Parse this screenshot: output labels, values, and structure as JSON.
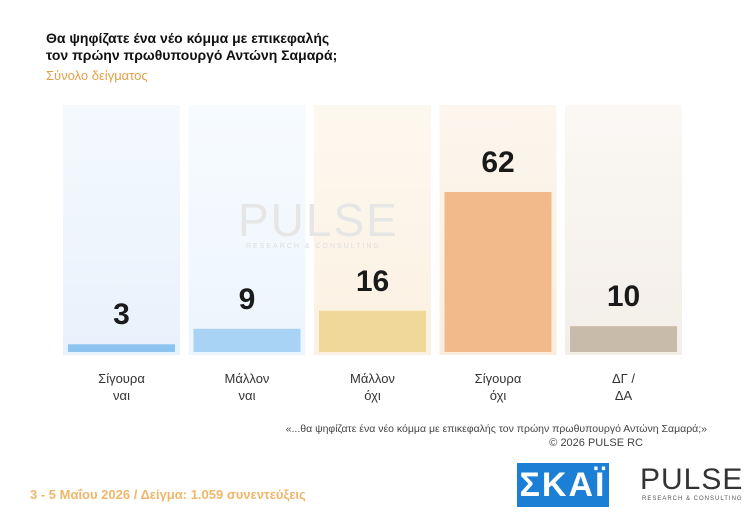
{
  "chart_data": {
    "type": "bar",
    "title": "Θα ψηφίζατε ένα νέο κόμμα με επικεφαλής\nτον πρώην πρωθυπουργό Αντώνη Σαμαρά;",
    "subtitle": "Σύνολο δείγματος",
    "categories": [
      "Σίγουρα\nναι",
      "Μάλλον\nναι",
      "Μάλλον\nόχι",
      "Σίγουρα\nόχι",
      "ΔΓ /\nΔΑ"
    ],
    "values": [
      3,
      9,
      16,
      62,
      10
    ],
    "colors": [
      "#8cc3ef",
      "#a9d3f5",
      "#f0d89a",
      "#f2b98a",
      "#c9bba9"
    ],
    "footnote": "«...θα ψηφίζατε ένα νέο κόμμα με επικεφαλής τον πρώην πρωθυπουργό Αντώνη Σαμαρά;»",
    "copyright": "©  2026  PULSE RC"
  },
  "footer": {
    "fieldwork": "3 - 5  Μαΐου 2026  /  Δείγμα:  1.059 συνεντεύξεις",
    "logo_skai": "ΣΚΑΪ",
    "logo_pulse": "PULSE",
    "logo_pulse_sub": "RESEARCH & CONSULTING"
  }
}
